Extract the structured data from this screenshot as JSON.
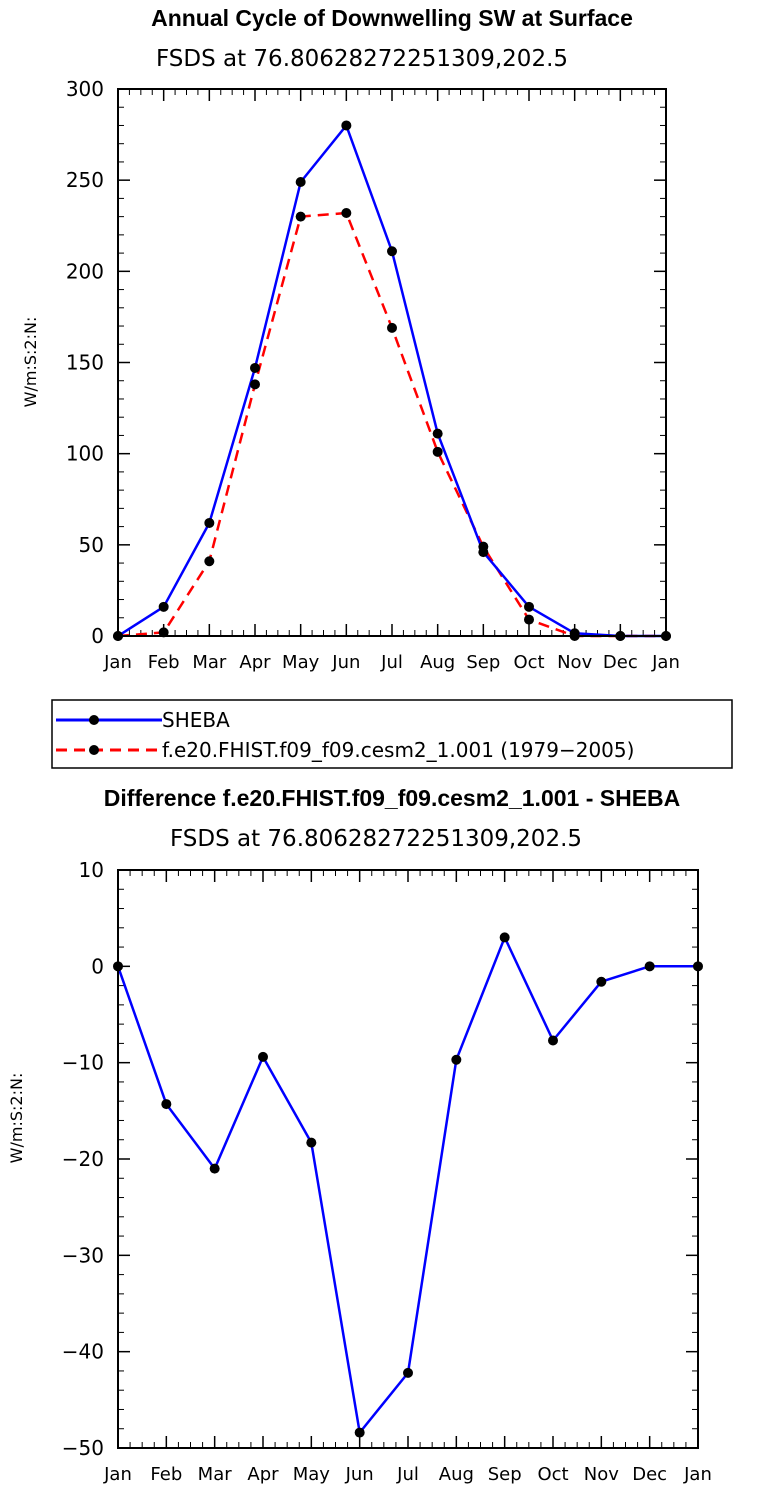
{
  "chart_data": [
    {
      "type": "line",
      "title": "Annual Cycle of Downwelling SW at Surface",
      "subtitle": "FSDS at 76.80628272251309,202.5",
      "ylabel": "W/m:S:2:N:",
      "xlabel": "",
      "categories": [
        "Jan",
        "Feb",
        "Mar",
        "Apr",
        "May",
        "Jun",
        "Jul",
        "Aug",
        "Sep",
        "Oct",
        "Nov",
        "Dec",
        "Jan"
      ],
      "ylim": [
        0,
        300
      ],
      "yticks": [
        0,
        50,
        100,
        150,
        200,
        250,
        300
      ],
      "series": [
        {
          "name": "SHEBA",
          "color": "#0000ff",
          "dash": "solid",
          "values": [
            0,
            16,
            62,
            147,
            249,
            280,
            211,
            111,
            46,
            16,
            1.5,
            0,
            0
          ]
        },
        {
          "name": "f.e20.FHIST.f09_f09.cesm2_1.001 (1979−2005)",
          "color": "#ff0000",
          "dash": "dashed",
          "values": [
            0,
            2,
            41,
            138,
            230,
            232,
            169,
            101,
            49,
            9,
            0,
            0,
            0
          ]
        }
      ],
      "legend_position": "bottom"
    },
    {
      "type": "line",
      "title": "Difference f.e20.FHIST.f09_f09.cesm2_1.001 - SHEBA",
      "subtitle": "FSDS at 76.80628272251309,202.5",
      "ylabel": "W/m:S:2:N:",
      "xlabel": "",
      "categories": [
        "Jan",
        "Feb",
        "Mar",
        "Apr",
        "May",
        "Jun",
        "Jul",
        "Aug",
        "Sep",
        "Oct",
        "Nov",
        "Dec",
        "Jan"
      ],
      "ylim": [
        -50,
        10
      ],
      "yticks": [
        -50,
        -40,
        -30,
        -20,
        -10,
        0,
        10
      ],
      "ytick_labels": [
        "−50",
        "−40",
        "−30",
        "−20",
        "−10",
        "0",
        "10"
      ],
      "series": [
        {
          "color": "#0000ff",
          "dash": "solid",
          "values": [
            0,
            -14.3,
            -21,
            -9.4,
            -18.3,
            -48.4,
            -42.2,
            -9.7,
            3,
            -7.7,
            -1.6,
            0,
            0
          ]
        }
      ]
    }
  ]
}
